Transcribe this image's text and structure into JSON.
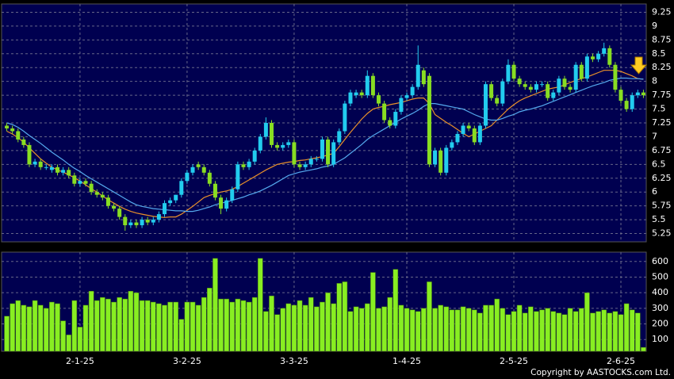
{
  "chart_data": {
    "type": "candlestick",
    "categories": [
      null,
      null,
      null,
      null,
      null,
      null,
      null,
      null,
      null,
      null,
      null,
      null,
      null,
      "2-1-25",
      null,
      null,
      null,
      null,
      null,
      null,
      null,
      null,
      null,
      null,
      null,
      null,
      null,
      null,
      null,
      null,
      null,
      null,
      "3-2-25",
      null,
      null,
      null,
      null,
      null,
      null,
      null,
      null,
      null,
      null,
      null,
      null,
      null,
      null,
      null,
      null,
      null,
      null,
      "3-3-25",
      null,
      null,
      null,
      null,
      null,
      null,
      null,
      null,
      null,
      null,
      null,
      null,
      null,
      null,
      null,
      null,
      null,
      null,
      null,
      "1-4-25",
      null,
      null,
      null,
      null,
      null,
      null,
      null,
      null,
      null,
      null,
      null,
      null,
      null,
      null,
      null,
      null,
      null,
      null,
      "2-5-25",
      null,
      null,
      null,
      null,
      null,
      null,
      null,
      null,
      null,
      null,
      null,
      null,
      null,
      null,
      null,
      null,
      null,
      null,
      "2-6-25",
      null,
      null,
      null,
      null
    ],
    "open": [
      7.2,
      7.15,
      7.1,
      6.95,
      6.85,
      6.5,
      6.55,
      6.45,
      6.4,
      6.45,
      6.35,
      6.4,
      6.3,
      6.15,
      6.2,
      6.15,
      6.0,
      5.95,
      5.9,
      5.75,
      5.7,
      5.55,
      5.4,
      5.45,
      5.4,
      5.5,
      5.45,
      5.5,
      5.6,
      5.8,
      5.85,
      5.95,
      6.2,
      6.35,
      6.5,
      6.45,
      6.35,
      6.15,
      5.9,
      5.7,
      5.85,
      6.05,
      6.5,
      6.45,
      6.55,
      6.75,
      7.0,
      7.25,
      6.85,
      6.8,
      6.85,
      6.9,
      6.5,
      6.45,
      6.5,
      6.6,
      6.6,
      6.95,
      6.5,
      6.9,
      7.1,
      7.6,
      7.75,
      7.8,
      7.75,
      8.1,
      7.75,
      7.6,
      7.3,
      7.2,
      7.45,
      7.7,
      7.75,
      7.9,
      8.2,
      8.1,
      6.5,
      6.75,
      6.35,
      6.8,
      6.9,
      7.05,
      7.2,
      7.15,
      6.9,
      7.2,
      7.95,
      7.7,
      7.6,
      8.0,
      8.3,
      8.05,
      7.95,
      7.9,
      7.85,
      7.95,
      7.95,
      7.7,
      7.8,
      8.05,
      7.9,
      7.85,
      8.3,
      8.05,
      8.45,
      8.4,
      8.5,
      8.6,
      8.3,
      7.85,
      7.65,
      7.5,
      7.75,
      7.8
    ],
    "high": [
      7.25,
      7.2,
      7.15,
      7.0,
      6.9,
      6.6,
      6.6,
      6.5,
      6.5,
      6.5,
      6.45,
      6.45,
      6.35,
      6.25,
      6.25,
      6.2,
      6.05,
      6.0,
      5.95,
      5.8,
      5.75,
      5.6,
      5.5,
      5.5,
      5.55,
      5.55,
      5.55,
      5.65,
      5.85,
      5.9,
      5.95,
      6.25,
      6.4,
      6.5,
      6.55,
      6.5,
      6.4,
      6.2,
      5.95,
      5.9,
      6.1,
      6.55,
      6.55,
      6.6,
      6.8,
      7.05,
      7.35,
      7.3,
      6.9,
      6.9,
      6.95,
      6.95,
      6.55,
      6.55,
      6.65,
      6.65,
      7.0,
      7.0,
      6.95,
      7.15,
      7.65,
      7.85,
      7.85,
      7.85,
      8.2,
      8.15,
      7.8,
      7.65,
      7.35,
      7.5,
      7.75,
      7.8,
      7.95,
      8.65,
      8.25,
      8.15,
      6.8,
      6.8,
      6.85,
      6.95,
      7.1,
      7.25,
      7.25,
      7.2,
      7.25,
      8.0,
      8.0,
      7.75,
      8.05,
      8.4,
      8.35,
      8.1,
      8.0,
      7.95,
      8.0,
      8.0,
      8.0,
      7.85,
      8.1,
      8.1,
      7.95,
      8.35,
      8.35,
      8.5,
      8.5,
      8.55,
      8.7,
      8.65,
      8.35,
      7.9,
      7.7,
      7.8,
      7.85,
      7.85
    ],
    "low": [
      7.1,
      7.05,
      6.9,
      6.8,
      6.45,
      6.45,
      6.4,
      6.4,
      6.35,
      6.3,
      6.3,
      6.25,
      6.1,
      6.1,
      6.1,
      5.95,
      5.9,
      5.85,
      5.7,
      5.65,
      5.5,
      5.3,
      5.35,
      5.35,
      5.35,
      5.4,
      5.4,
      5.45,
      5.55,
      5.75,
      5.8,
      5.9,
      6.15,
      6.3,
      6.4,
      6.3,
      6.1,
      5.85,
      5.6,
      5.65,
      5.8,
      6.0,
      6.4,
      6.4,
      6.5,
      6.7,
      6.95,
      6.8,
      6.75,
      6.75,
      6.8,
      6.45,
      6.4,
      6.4,
      6.45,
      6.55,
      6.55,
      6.45,
      6.45,
      6.85,
      7.05,
      7.55,
      7.7,
      7.7,
      7.7,
      7.7,
      7.55,
      7.25,
      7.15,
      7.15,
      7.4,
      7.65,
      7.7,
      7.85,
      7.9,
      6.45,
      6.45,
      6.3,
      6.3,
      6.75,
      6.85,
      7.0,
      7.1,
      6.85,
      6.85,
      7.15,
      7.65,
      7.55,
      7.55,
      7.95,
      8.0,
      7.9,
      7.85,
      7.8,
      7.8,
      7.9,
      7.65,
      7.65,
      7.75,
      7.85,
      7.8,
      7.8,
      8.0,
      8.0,
      8.35,
      8.35,
      8.45,
      8.25,
      7.8,
      7.6,
      7.45,
      7.45,
      7.7,
      7.7
    ],
    "close": [
      7.15,
      7.1,
      6.95,
      6.85,
      6.5,
      6.55,
      6.45,
      6.45,
      6.45,
      6.35,
      6.4,
      6.3,
      6.15,
      6.2,
      6.15,
      6.0,
      5.95,
      5.9,
      5.75,
      5.7,
      5.55,
      5.4,
      5.45,
      5.4,
      5.5,
      5.45,
      5.5,
      5.6,
      5.8,
      5.85,
      5.95,
      6.2,
      6.35,
      6.45,
      6.45,
      6.35,
      6.15,
      5.9,
      5.7,
      5.85,
      6.05,
      6.5,
      6.45,
      6.55,
      6.75,
      7.0,
      7.25,
      6.85,
      6.8,
      6.85,
      6.9,
      6.5,
      6.45,
      6.5,
      6.6,
      6.6,
      6.95,
      6.5,
      6.9,
      7.1,
      7.6,
      7.8,
      7.8,
      7.75,
      8.1,
      7.75,
      7.6,
      7.3,
      7.2,
      7.45,
      7.7,
      7.75,
      7.9,
      8.3,
      7.95,
      6.5,
      6.75,
      6.35,
      6.8,
      6.9,
      7.05,
      7.2,
      7.15,
      6.9,
      7.2,
      7.95,
      7.7,
      7.6,
      8.0,
      8.3,
      8.05,
      7.95,
      7.9,
      7.85,
      7.95,
      7.95,
      7.7,
      7.8,
      8.05,
      7.9,
      7.85,
      8.3,
      8.05,
      8.45,
      8.4,
      8.5,
      8.6,
      8.3,
      7.85,
      7.65,
      7.5,
      7.75,
      7.8,
      7.75
    ],
    "up_color": "#22ccee",
    "down_color": "#88dd22",
    "ylim": [
      5.1,
      9.4
    ],
    "yticks": [
      5.25,
      5.5,
      5.75,
      6,
      6.25,
      6.5,
      6.75,
      7,
      7.25,
      7.5,
      7.75,
      8,
      8.25,
      8.5,
      8.75,
      9,
      9.25
    ],
    "grid": true,
    "lines": [
      {
        "color": "#e8902a",
        "values": [
          7.1,
          7.05,
          6.98,
          6.9,
          6.8,
          6.7,
          6.6,
          6.52,
          6.45,
          6.4,
          6.36,
          6.31,
          6.26,
          6.2,
          6.13,
          6.06,
          6.0,
          5.93,
          5.86,
          5.8,
          5.74,
          5.69,
          5.65,
          5.62,
          5.6,
          5.58,
          5.56,
          5.55,
          5.54,
          5.55,
          5.55,
          5.6,
          5.67,
          5.74,
          5.82,
          5.9,
          5.94,
          5.97,
          6.0,
          6.02,
          6.05,
          6.1,
          6.16,
          6.22,
          6.28,
          6.34,
          6.4,
          6.45,
          6.5,
          6.52,
          6.54,
          6.55,
          6.57,
          6.58,
          6.6,
          6.62,
          6.64,
          6.67,
          6.7,
          6.82,
          6.95,
          7.08,
          7.2,
          7.32,
          7.42,
          7.5,
          7.53,
          7.55,
          7.58,
          7.6,
          7.62,
          7.65,
          7.68,
          7.7,
          7.7,
          7.6,
          7.4,
          7.33,
          7.26,
          7.2,
          7.13,
          7.06,
          7.0,
          7.05,
          7.1,
          7.15,
          7.2,
          7.3,
          7.4,
          7.5,
          7.58,
          7.65,
          7.7,
          7.74,
          7.78,
          7.82,
          7.86,
          7.88,
          7.9,
          7.94,
          7.98,
          8.02,
          8.05,
          8.08,
          8.12,
          8.16,
          8.2,
          8.2,
          8.2,
          8.18,
          8.14,
          8.1,
          8.05,
          8.04
        ]
      },
      {
        "color": "#55aaee",
        "values": [
          7.25,
          7.22,
          7.17,
          7.1,
          7.02,
          6.95,
          6.88,
          6.8,
          6.72,
          6.65,
          6.58,
          6.5,
          6.43,
          6.37,
          6.3,
          6.24,
          6.18,
          6.12,
          6.06,
          6.0,
          5.94,
          5.88,
          5.82,
          5.77,
          5.74,
          5.72,
          5.7,
          5.69,
          5.68,
          5.67,
          5.66,
          5.66,
          5.65,
          5.65,
          5.67,
          5.7,
          5.73,
          5.77,
          5.8,
          5.82,
          5.85,
          5.88,
          5.91,
          5.95,
          5.98,
          6.02,
          6.07,
          6.12,
          6.18,
          6.24,
          6.3,
          6.33,
          6.36,
          6.38,
          6.4,
          6.42,
          6.45,
          6.47,
          6.5,
          6.56,
          6.62,
          6.7,
          6.78,
          6.86,
          6.95,
          7.02,
          7.08,
          7.14,
          7.2,
          7.26,
          7.32,
          7.37,
          7.42,
          7.48,
          7.55,
          7.6,
          7.6,
          7.58,
          7.56,
          7.54,
          7.52,
          7.5,
          7.45,
          7.4,
          7.36,
          7.32,
          7.3,
          7.3,
          7.33,
          7.37,
          7.4,
          7.45,
          7.48,
          7.5,
          7.53,
          7.56,
          7.6,
          7.64,
          7.68,
          7.72,
          7.76,
          7.8,
          7.84,
          7.88,
          7.92,
          7.95,
          7.98,
          8.02,
          8.04,
          8.06,
          8.06,
          8.05,
          8.05,
          8.04
        ]
      }
    ],
    "volume": {
      "type": "bar",
      "color": "#88ee22",
      "values": [
        250,
        330,
        350,
        320,
        310,
        350,
        320,
        300,
        340,
        330,
        220,
        130,
        350,
        180,
        320,
        410,
        350,
        370,
        360,
        340,
        370,
        360,
        410,
        400,
        350,
        350,
        340,
        330,
        320,
        340,
        340,
        230,
        340,
        340,
        320,
        370,
        430,
        620,
        360,
        360,
        340,
        360,
        350,
        340,
        370,
        620,
        280,
        380,
        260,
        300,
        330,
        320,
        350,
        320,
        370,
        310,
        340,
        400,
        330,
        460,
        470,
        280,
        310,
        300,
        330,
        530,
        300,
        310,
        370,
        550,
        320,
        300,
        290,
        280,
        300,
        470,
        300,
        320,
        310,
        290,
        290,
        310,
        300,
        290,
        270,
        320,
        320,
        360,
        300,
        260,
        280,
        320,
        270,
        310,
        280,
        290,
        300,
        280,
        270,
        260,
        300,
        280,
        300,
        400,
        270,
        280,
        290,
        270,
        280,
        260,
        330,
        290,
        270,
        50
      ],
      "ylim": [
        25,
        660
      ],
      "yticks": [
        100,
        200,
        300,
        400,
        500,
        600
      ]
    },
    "credit": "Copyright by AASTOCKS.com Ltd."
  }
}
